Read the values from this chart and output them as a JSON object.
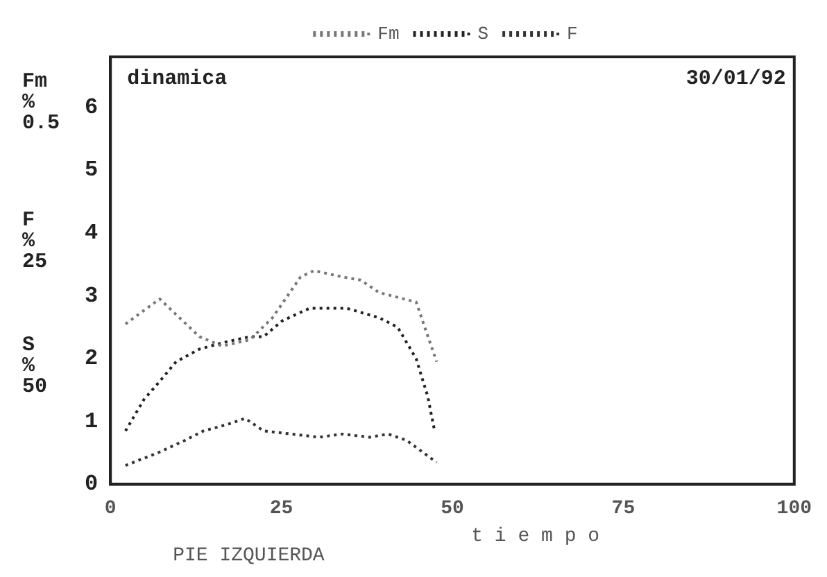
{
  "chart_data": {
    "type": "line",
    "title": "dinamica",
    "xlabel": "t i e m p o",
    "ylabel": "Fm % 0.5",
    "annotations": [
      "F % 25",
      "S % 50",
      "30/01/92",
      "PIE IZQUIERDA"
    ],
    "xlim": [
      0,
      100
    ],
    "xticks": [
      0,
      25,
      50,
      75,
      100
    ],
    "ylim": [
      0,
      6.8
    ],
    "yticks": [
      0,
      1,
      2,
      3,
      4,
      5,
      6
    ],
    "grid": false,
    "legend": "top",
    "line_style": "dotted",
    "marker": "none",
    "series": [
      {
        "name": "Fm",
        "color": "#777777",
        "x": [
          2.2,
          7.2,
          13,
          16.3,
          20.4,
          23.7,
          27.8,
          29.8,
          33.9,
          36.6,
          39.3,
          44.7,
          47.7
        ],
        "values": [
          2.55,
          2.95,
          2.35,
          2.2,
          2.3,
          2.65,
          3.3,
          3.4,
          3.3,
          3.25,
          3.05,
          2.9,
          1.95
        ]
      },
      {
        "name": "S",
        "color": "#222222",
        "x": [
          2.2,
          4.9,
          6.9,
          9.6,
          13,
          16.3,
          20.4,
          22.4,
          25.1,
          29.1,
          34.6,
          39.3,
          42,
          44.7,
          46.4,
          47.4
        ],
        "values": [
          0.85,
          1.35,
          1.6,
          1.95,
          2.15,
          2.25,
          2.35,
          2.35,
          2.6,
          2.8,
          2.8,
          2.65,
          2.5,
          2.0,
          1.4,
          0.85
        ]
      },
      {
        "name": "F",
        "color": "#333333",
        "x": [
          2.2,
          6.9,
          10.9,
          13.6,
          17,
          19.7,
          22.4,
          26.5,
          30.5,
          33.9,
          37.9,
          40.6,
          43.3,
          47.7
        ],
        "values": [
          0.3,
          0.5,
          0.7,
          0.85,
          0.95,
          1.05,
          0.85,
          0.8,
          0.75,
          0.8,
          0.75,
          0.8,
          0.7,
          0.35
        ]
      }
    ]
  }
}
